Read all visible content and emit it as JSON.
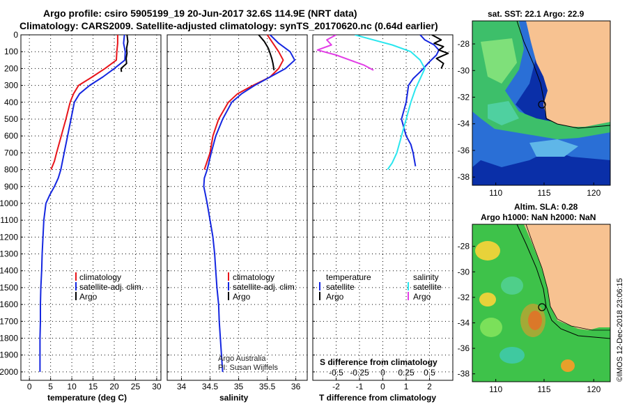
{
  "header": {
    "line1": "Argo profile: csiro 5905199_19 20-Jun-2017 32.6S 114.9E (NRT data)",
    "line2": "Climatology: CARS2009. Satellite-adjusted climatology: synTS_20170620.nc (0.64d earlier)"
  },
  "colors": {
    "climatology": "#e8141a",
    "satellite": "#1426e0",
    "argo": "#000000",
    "sat_temperature": "#29e6ee",
    "argo_salinity": "#e23ee6",
    "land": "#f7c291"
  },
  "chart_data": [
    {
      "type": "line",
      "name": "temperature-panel",
      "xlabel": "temperature (deg C)",
      "xlim": [
        -2,
        31
      ],
      "ylim": [
        0,
        2050
      ],
      "xticks": [
        0,
        5,
        10,
        15,
        20,
        25,
        30
      ],
      "yticks": [
        0,
        100,
        200,
        300,
        400,
        500,
        600,
        700,
        800,
        900,
        1000,
        1100,
        1200,
        1300,
        1400,
        1500,
        1600,
        1700,
        1800,
        1900,
        2000
      ],
      "legend": [
        "climatology",
        "satellite-adj. clim.",
        "Argo"
      ],
      "series": [
        {
          "name": "climatology",
          "color": "#e8141a",
          "x": [
            20.8,
            20.8,
            20.6,
            20.5,
            17.8,
            14.8,
            11.6,
            10.4,
            9.6,
            8.6,
            7.5,
            6.4,
            5.9,
            5.1
          ],
          "y": [
            0,
            50,
            100,
            150,
            200,
            250,
            300,
            350,
            400,
            500,
            600,
            700,
            750,
            800
          ]
        },
        {
          "name": "satellite-adj. clim.",
          "color": "#1426e0",
          "x": [
            22.4,
            22.2,
            22.6,
            22.5,
            20.0,
            17.3,
            14.2,
            11.8,
            10.6,
            9.8,
            9.0,
            8.2,
            7.4,
            6.8,
            5.9,
            4.8,
            3.9,
            3.4,
            3.2,
            3.0,
            2.9,
            2.7,
            2.6,
            2.6,
            2.5,
            2.5,
            2.5
          ],
          "y": [
            0,
            50,
            100,
            150,
            200,
            250,
            300,
            350,
            400,
            500,
            600,
            700,
            800,
            850,
            900,
            950,
            1000,
            1100,
            1200,
            1300,
            1400,
            1500,
            1600,
            1700,
            1800,
            1900,
            2000
          ]
        },
        {
          "name": "Argo",
          "color": "#000000",
          "x": [
            23.0,
            23.2,
            22.9,
            23.0,
            22.8,
            22.9,
            21.6,
            21.7
          ],
          "y": [
            0,
            40,
            80,
            110,
            140,
            170,
            200,
            220
          ]
        }
      ]
    },
    {
      "type": "line",
      "name": "salinity-panel",
      "xlabel": "salinity",
      "xlim": [
        33.75,
        36.2
      ],
      "ylim": [
        0,
        2050
      ],
      "xticks": [
        34,
        34.5,
        35,
        35.5,
        36
      ],
      "legend": [
        "climatology",
        "satellite-adj. clim.",
        "Argo"
      ],
      "annotations": [
        "Argo Australia",
        "PI: Susan Wijffels"
      ],
      "series": [
        {
          "name": "climatology",
          "color": "#e8141a",
          "x": [
            35.5,
            35.6,
            35.7,
            35.78,
            35.7,
            35.55,
            35.25,
            34.98,
            34.82,
            34.65,
            34.55,
            34.5,
            34.45,
            34.4
          ],
          "y": [
            0,
            50,
            100,
            150,
            200,
            250,
            300,
            350,
            400,
            500,
            600,
            700,
            750,
            800
          ]
        },
        {
          "name": "satellite-adj. clim.",
          "color": "#1426e0",
          "x": [
            35.55,
            35.7,
            35.9,
            35.98,
            35.82,
            35.55,
            35.28,
            35.05,
            34.88,
            34.72,
            34.6,
            34.52,
            34.45,
            34.4,
            34.39,
            34.42,
            34.45,
            34.5,
            34.55,
            34.58,
            34.6,
            34.62,
            34.65,
            34.66,
            34.68,
            34.7,
            34.72
          ],
          "y": [
            0,
            50,
            100,
            150,
            200,
            250,
            300,
            350,
            400,
            500,
            600,
            700,
            800,
            850,
            900,
            950,
            1000,
            1100,
            1200,
            1300,
            1400,
            1500,
            1600,
            1700,
            1800,
            1900,
            2000
          ]
        },
        {
          "name": "Argo",
          "color": "#000000",
          "x": [
            35.35,
            35.45,
            35.52,
            35.55,
            35.58,
            35.6,
            35.62
          ],
          "y": [
            0,
            40,
            80,
            110,
            140,
            170,
            210
          ]
        }
      ]
    },
    {
      "type": "line",
      "name": "difference-panel",
      "xlabel": "T difference from climatology",
      "x2label": "S difference from climatology",
      "xlim": [
        -3.0,
        3.0
      ],
      "x2lim": [
        -0.75,
        0.75
      ],
      "ylim": [
        0,
        2050
      ],
      "xticks": [
        -2,
        -1,
        0,
        1,
        2
      ],
      "x2ticks": [
        "-0.5",
        "-0.25",
        "0",
        "0.25",
        "0.5"
      ],
      "legend_temperature": [
        "temperature",
        "satellite",
        "Argo"
      ],
      "legend_salinity": [
        "salinity",
        "satellite",
        "Argo"
      ],
      "series": [
        {
          "name": "T satellite",
          "color": "#1426e0",
          "x": [
            1.6,
            1.8,
            2.2,
            2.4,
            2.3,
            2.0,
            1.6,
            1.3,
            1.1,
            1.0,
            0.8,
            1.0,
            1.2,
            1.3,
            1.4
          ],
          "y": [
            0,
            30,
            60,
            90,
            120,
            160,
            220,
            260,
            300,
            400,
            500,
            600,
            650,
            700,
            780
          ]
        },
        {
          "name": "T Argo",
          "color": "#000000",
          "x": [
            2.1,
            2.5,
            2.2,
            2.6,
            2.4,
            2.8,
            2.3,
            2.6,
            2.5
          ],
          "y": [
            0,
            30,
            50,
            70,
            90,
            110,
            140,
            170,
            200
          ]
        },
        {
          "name": "S satellite",
          "color": "#29e6ee",
          "x": [
            -0.3,
            -0.1,
            0.1,
            0.3,
            0.4,
            0.45,
            0.4,
            0.35,
            0.3,
            0.25,
            0.2,
            0.15,
            0.1,
            0.05
          ],
          "y": [
            0,
            30,
            60,
            100,
            150,
            200,
            260,
            320,
            400,
            500,
            600,
            700,
            760,
            800
          ]
        },
        {
          "name": "S Argo",
          "color": "#e23ee6",
          "x": [
            -0.5,
            -0.6,
            -0.55,
            -0.7,
            -0.5,
            -0.35,
            -0.2,
            -0.1
          ],
          "y": [
            0,
            30,
            60,
            90,
            120,
            150,
            180,
            210
          ]
        }
      ]
    }
  ],
  "maps": {
    "sst": {
      "title": "sat. SST: 22.1  Argo: 22.9",
      "xticks": [
        "110",
        "115",
        "120"
      ],
      "yticks": [
        "-28",
        "-30",
        "-32",
        "-34",
        "-36",
        "-38"
      ]
    },
    "sla": {
      "title_line1": "Altim. SLA: 0.28",
      "title_line2": "Argo h1000: NaN h2000: NaN",
      "xticks": [
        "110",
        "115",
        "120"
      ],
      "yticks": [
        "-28",
        "-30",
        "-32",
        "-34",
        "-36",
        "-38"
      ]
    }
  },
  "footer": {
    "credit": "©IMOS 12-Dec-2018 23:06:15"
  }
}
